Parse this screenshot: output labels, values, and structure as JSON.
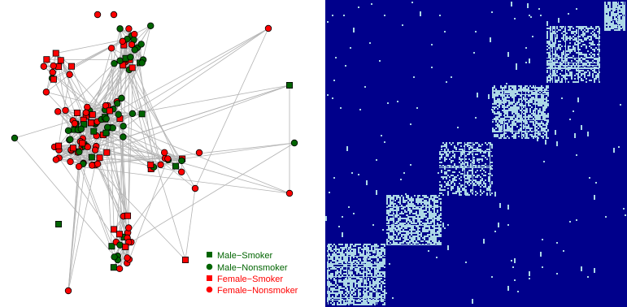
{
  "legend": {
    "items": [
      {
        "label": "Male−Smoker",
        "color": "#006400",
        "shape": "square"
      },
      {
        "label": "Male−Nonsmoker",
        "color": "#006400",
        "shape": "circle"
      },
      {
        "label": "Female−Smoker",
        "color": "#ff0000",
        "shape": "square"
      },
      {
        "label": "Female−Nonsmoker",
        "color": "#ff0000",
        "shape": "circle"
      }
    ]
  },
  "colors": {
    "edge": "#b3b3b3",
    "node_outline": "#000000",
    "matrix_background": "#00008b",
    "matrix_cell": "#add8e6"
  }
}
